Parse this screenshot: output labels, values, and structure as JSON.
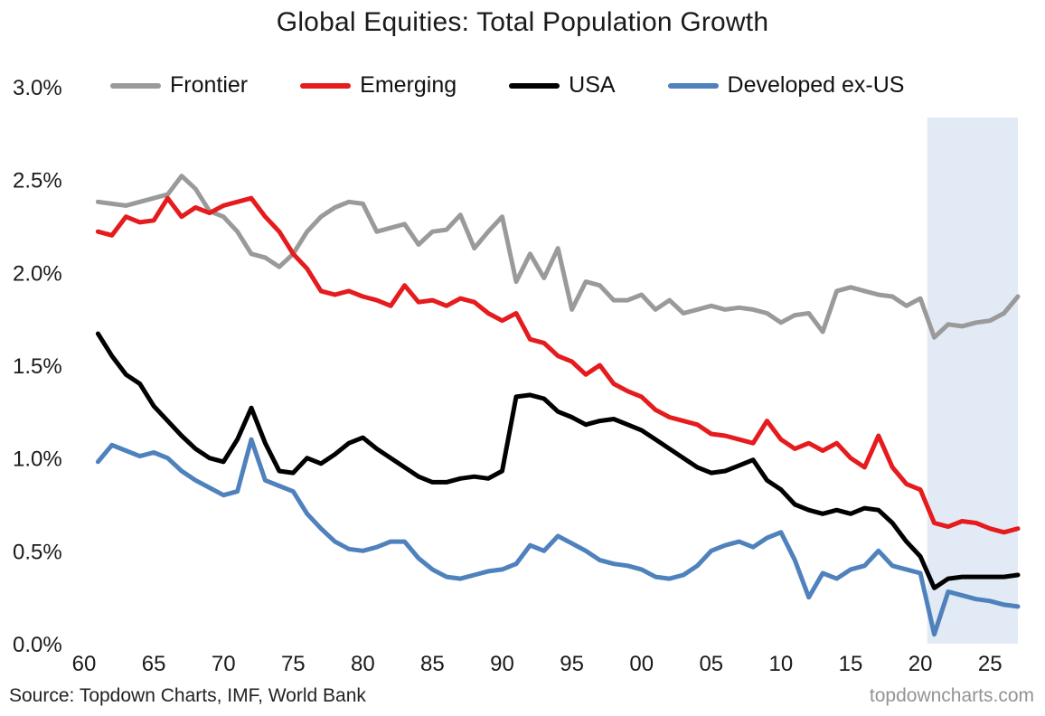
{
  "title": "Global Equities: Total Population Growth",
  "footer": {
    "source": "Source: Topdown Charts, IMF, World Bank",
    "watermark": "topdowncharts.com"
  },
  "chart_data": {
    "type": "line",
    "title": "Global Equities: Total Population Growth",
    "grid": false,
    "legend_position": "top",
    "xlim": [
      1960,
      2027
    ],
    "ylim": [
      0,
      3.0
    ],
    "x": [
      1961,
      1962,
      1963,
      1964,
      1965,
      1966,
      1967,
      1968,
      1969,
      1970,
      1971,
      1972,
      1973,
      1974,
      1975,
      1976,
      1977,
      1978,
      1979,
      1980,
      1981,
      1982,
      1983,
      1984,
      1985,
      1986,
      1987,
      1988,
      1989,
      1990,
      1991,
      1992,
      1993,
      1994,
      1995,
      1996,
      1997,
      1998,
      1999,
      2000,
      2001,
      2002,
      2003,
      2004,
      2005,
      2006,
      2007,
      2008,
      2009,
      2010,
      2011,
      2012,
      2013,
      2014,
      2015,
      2016,
      2017,
      2018,
      2019,
      2020,
      2021,
      2022,
      2023,
      2024,
      2025,
      2026,
      2027
    ],
    "x_tick_years": [
      1960,
      1965,
      1970,
      1975,
      1980,
      1985,
      1990,
      1995,
      2000,
      2005,
      2010,
      2015,
      2020,
      2025
    ],
    "x_tick_labels": [
      "60",
      "65",
      "70",
      "75",
      "80",
      "85",
      "90",
      "95",
      "00",
      "05",
      "10",
      "15",
      "20",
      "25"
    ],
    "y_ticks": [
      {
        "value": 3.0,
        "label": "3.0%"
      },
      {
        "value": 2.5,
        "label": "2.5%"
      },
      {
        "value": 2.0,
        "label": "2.0%"
      },
      {
        "value": 1.5,
        "label": "1.5%"
      },
      {
        "value": 1.0,
        "label": "1.0%"
      },
      {
        "value": 0.5,
        "label": "0.5%"
      },
      {
        "value": 0.0,
        "label": "0.0%"
      }
    ],
    "forecast_band": {
      "start_year": 2020.5,
      "end_year": 2027.5,
      "color": "#e2eaf5"
    },
    "series": [
      {
        "name": "Frontier",
        "color": "#9a9a9a",
        "values": [
          2.38,
          2.37,
          2.36,
          2.38,
          2.4,
          2.42,
          2.52,
          2.45,
          2.33,
          2.3,
          2.22,
          2.1,
          2.08,
          2.03,
          2.1,
          2.22,
          2.3,
          2.35,
          2.38,
          2.37,
          2.22,
          2.24,
          2.26,
          2.15,
          2.22,
          2.23,
          2.31,
          2.13,
          2.22,
          2.3,
          1.95,
          2.1,
          1.97,
          2.13,
          1.8,
          1.95,
          1.93,
          1.85,
          1.85,
          1.88,
          1.8,
          1.85,
          1.78,
          1.8,
          1.82,
          1.8,
          1.81,
          1.8,
          1.78,
          1.73,
          1.77,
          1.78,
          1.68,
          1.9,
          1.92,
          1.9,
          1.88,
          1.87,
          1.82,
          1.86,
          1.65,
          1.72,
          1.71,
          1.73,
          1.74,
          1.78,
          1.87
        ]
      },
      {
        "name": "Emerging",
        "color": "#e51b1e",
        "values": [
          2.22,
          2.2,
          2.3,
          2.27,
          2.28,
          2.4,
          2.3,
          2.35,
          2.32,
          2.36,
          2.38,
          2.4,
          2.3,
          2.22,
          2.1,
          2.02,
          1.9,
          1.88,
          1.9,
          1.87,
          1.85,
          1.82,
          1.93,
          1.84,
          1.85,
          1.82,
          1.86,
          1.84,
          1.78,
          1.74,
          1.78,
          1.64,
          1.62,
          1.55,
          1.52,
          1.45,
          1.5,
          1.4,
          1.36,
          1.33,
          1.26,
          1.22,
          1.2,
          1.18,
          1.13,
          1.12,
          1.1,
          1.08,
          1.2,
          1.1,
          1.05,
          1.08,
          1.04,
          1.08,
          1.0,
          0.95,
          1.12,
          0.95,
          0.86,
          0.83,
          0.65,
          0.63,
          0.66,
          0.65,
          0.62,
          0.6,
          0.62
        ]
      },
      {
        "name": "USA",
        "color": "#000000",
        "values": [
          1.67,
          1.55,
          1.45,
          1.4,
          1.28,
          1.2,
          1.12,
          1.05,
          1.0,
          0.98,
          1.1,
          1.27,
          1.08,
          0.93,
          0.92,
          1.0,
          0.97,
          1.02,
          1.08,
          1.11,
          1.05,
          1.0,
          0.95,
          0.9,
          0.87,
          0.87,
          0.89,
          0.9,
          0.89,
          0.93,
          1.33,
          1.34,
          1.32,
          1.25,
          1.22,
          1.18,
          1.2,
          1.21,
          1.18,
          1.15,
          1.1,
          1.05,
          1.0,
          0.95,
          0.92,
          0.93,
          0.96,
          0.99,
          0.88,
          0.83,
          0.75,
          0.72,
          0.7,
          0.72,
          0.7,
          0.73,
          0.72,
          0.65,
          0.55,
          0.47,
          0.3,
          0.35,
          0.36,
          0.36,
          0.36,
          0.36,
          0.37
        ]
      },
      {
        "name": "Developed ex-US",
        "color": "#4f81bd",
        "values": [
          0.98,
          1.07,
          1.04,
          1.01,
          1.03,
          1.0,
          0.93,
          0.88,
          0.84,
          0.8,
          0.82,
          1.1,
          0.88,
          0.85,
          0.82,
          0.7,
          0.62,
          0.55,
          0.51,
          0.5,
          0.52,
          0.55,
          0.55,
          0.46,
          0.4,
          0.36,
          0.35,
          0.37,
          0.39,
          0.4,
          0.43,
          0.53,
          0.5,
          0.58,
          0.54,
          0.5,
          0.45,
          0.43,
          0.42,
          0.4,
          0.36,
          0.35,
          0.37,
          0.42,
          0.5,
          0.53,
          0.55,
          0.52,
          0.57,
          0.6,
          0.45,
          0.25,
          0.38,
          0.35,
          0.4,
          0.42,
          0.5,
          0.42,
          0.4,
          0.38,
          0.05,
          0.28,
          0.26,
          0.24,
          0.23,
          0.21,
          0.2
        ]
      }
    ]
  }
}
